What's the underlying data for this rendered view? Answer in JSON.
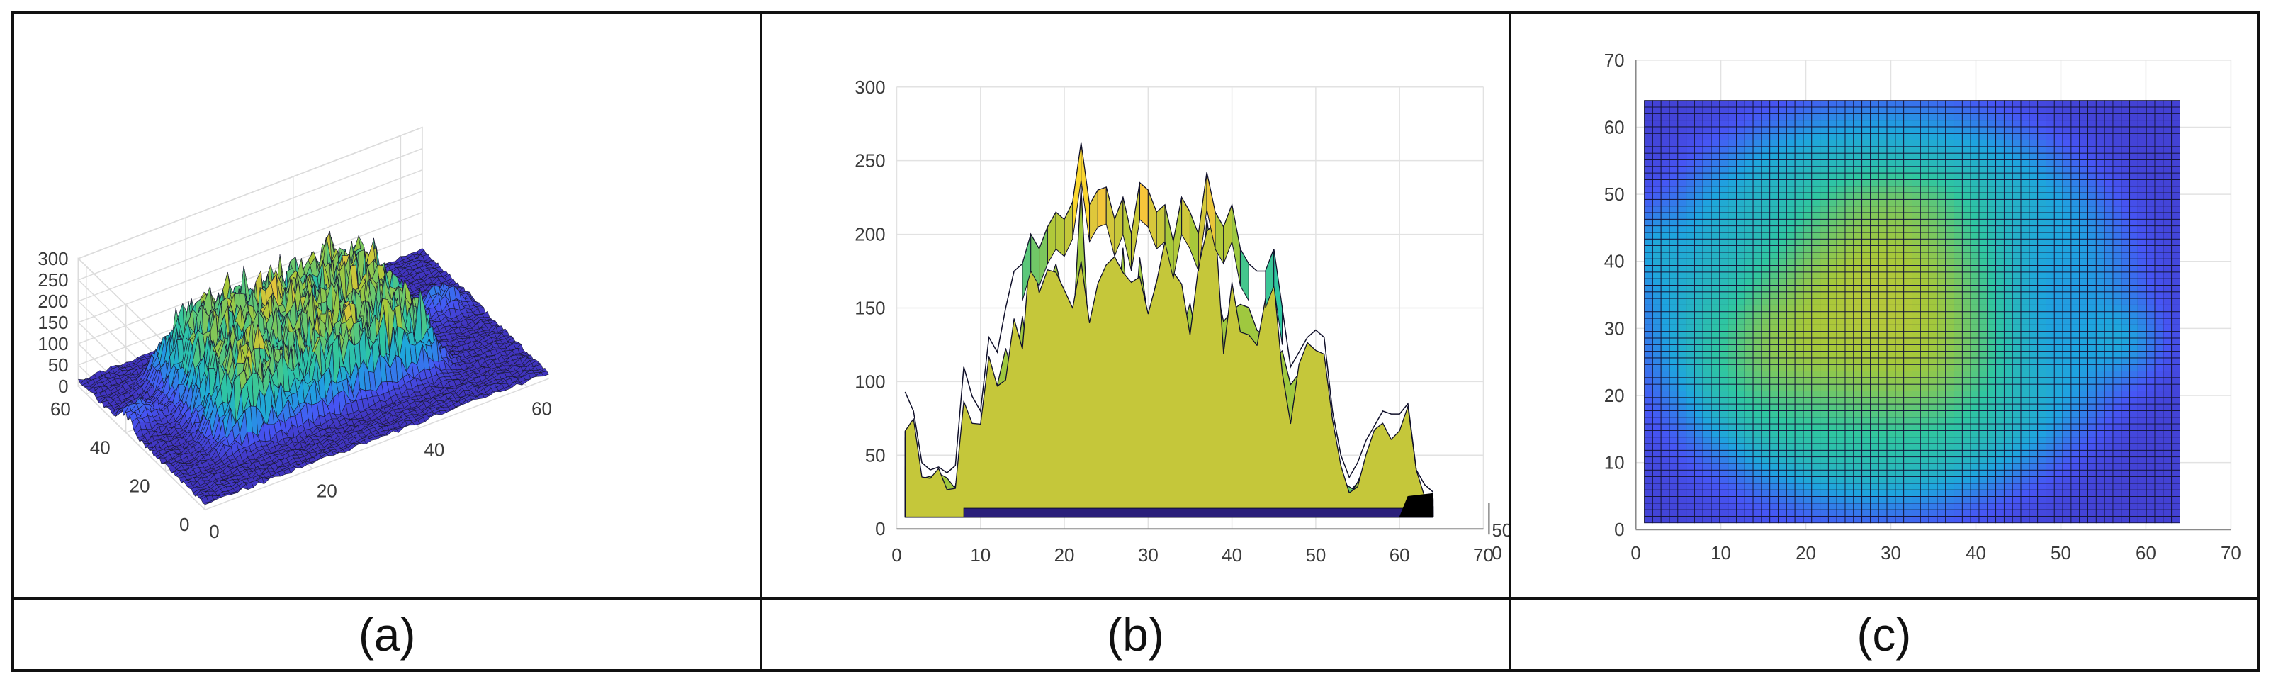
{
  "captions": [
    "(a)",
    "(b)",
    "(c)"
  ],
  "chart_data": [
    {
      "panel": "(a)",
      "type": "surface3d",
      "view": "isometric 3D surface",
      "x_ticks": [
        "0",
        "20",
        "40",
        "60"
      ],
      "y_ticks": [
        "0",
        "20",
        "40",
        "60"
      ],
      "z_ticks": [
        "0",
        "50",
        "100",
        "150",
        "200",
        "250",
        "300"
      ],
      "xlim": [
        0,
        64
      ],
      "ylim": [
        0,
        64
      ],
      "zlim": [
        0,
        300
      ],
      "grid": true,
      "colormap": [
        "#3e26a8",
        "#4656f5",
        "#1ea4df",
        "#2fc6a0",
        "#a5c83a",
        "#f9c63b",
        "#f9fb14"
      ],
      "surface": {
        "grid_size": 64,
        "baseline": 8,
        "plateau": {
          "x_range": [
            10,
            50
          ],
          "y_range": [
            15,
            55
          ],
          "peak": 230
        },
        "side_lobes": [
          {
            "x": 58,
            "y": 38,
            "height": 70
          },
          {
            "x": 2,
            "y": 40,
            "height": 60
          }
        ]
      }
    },
    {
      "panel": "(b)",
      "type": "surface3d",
      "view": "side view (x-z)",
      "x_ticks": [
        "0",
        "10",
        "20",
        "30",
        "40",
        "50",
        "60",
        "70"
      ],
      "y_ticks": [
        "0",
        "50",
        "100",
        "150",
        "200",
        "250",
        "300"
      ],
      "depth_ticks": [
        "50",
        "0"
      ],
      "xlim": [
        0,
        70
      ],
      "ylim": [
        0,
        300
      ],
      "grid": true,
      "envelope": {
        "x": [
          1,
          2,
          3,
          4,
          5,
          6,
          7,
          8,
          9,
          10,
          11,
          12,
          13,
          14,
          15,
          16,
          17,
          18,
          19,
          20,
          21,
          22,
          23,
          24,
          25,
          26,
          27,
          28,
          29,
          30,
          31,
          32,
          33,
          34,
          35,
          36,
          37,
          38,
          39,
          40,
          41,
          42,
          43,
          44,
          45,
          46,
          47,
          48,
          49,
          50,
          51,
          52,
          53,
          54,
          55,
          56,
          57,
          58,
          59,
          60,
          61,
          62,
          63,
          64
        ],
        "max": [
          93,
          80,
          45,
          40,
          42,
          38,
          43,
          110,
          90,
          80,
          130,
          120,
          150,
          175,
          180,
          200,
          190,
          205,
          215,
          210,
          222,
          262,
          220,
          230,
          232,
          210,
          225,
          200,
          235,
          230,
          215,
          220,
          195,
          225,
          215,
          200,
          242,
          215,
          205,
          220,
          190,
          180,
          175,
          175,
          190,
          150,
          110,
          120,
          130,
          135,
          130,
          80,
          50,
          35,
          45,
          60,
          70,
          80,
          78,
          78,
          85,
          40,
          30,
          25
        ]
      }
    },
    {
      "panel": "(c)",
      "type": "heatmap",
      "x_ticks": [
        "0",
        "10",
        "20",
        "30",
        "40",
        "50",
        "60",
        "70"
      ],
      "y_ticks": [
        "0",
        "10",
        "20",
        "30",
        "40",
        "50",
        "60",
        "70"
      ],
      "xlim": [
        0,
        70
      ],
      "ylim": [
        0,
        70
      ],
      "grid": true,
      "cells": {
        "x_range": [
          1,
          64
        ],
        "y_range": [
          1,
          64
        ],
        "count": 64
      },
      "colormap": [
        "#3e26a8",
        "#4656f5",
        "#1ea4df",
        "#2fc6a0",
        "#a5c83a",
        "#f9c63b",
        "#f9fb14"
      ],
      "blobs": [
        {
          "x": 26,
          "y": 30,
          "sx": 11,
          "sy": 13,
          "weight": 0.6
        },
        {
          "x": 32,
          "y": 42,
          "sx": 10,
          "sy": 8,
          "weight": 0.28
        },
        {
          "x": 37,
          "y": 24,
          "sx": 7,
          "sy": 8,
          "weight": 0.22
        },
        {
          "x": 16,
          "y": 27,
          "sx": 5,
          "sy": 6,
          "weight": 0.18
        },
        {
          "x": 31,
          "y": 50,
          "sx": 8,
          "sy": 4,
          "weight": 0.15
        },
        {
          "x": 58,
          "y": 28,
          "sx": 3,
          "sy": 4,
          "weight": 0.1
        },
        {
          "x": 2,
          "y": 42,
          "sx": 2,
          "sy": 4,
          "weight": 0.1
        }
      ],
      "base_level": 0.06,
      "outer_ring": {
        "x": 30,
        "y": 34,
        "rx": 27,
        "ry": 28,
        "weight": 0.12
      }
    }
  ]
}
